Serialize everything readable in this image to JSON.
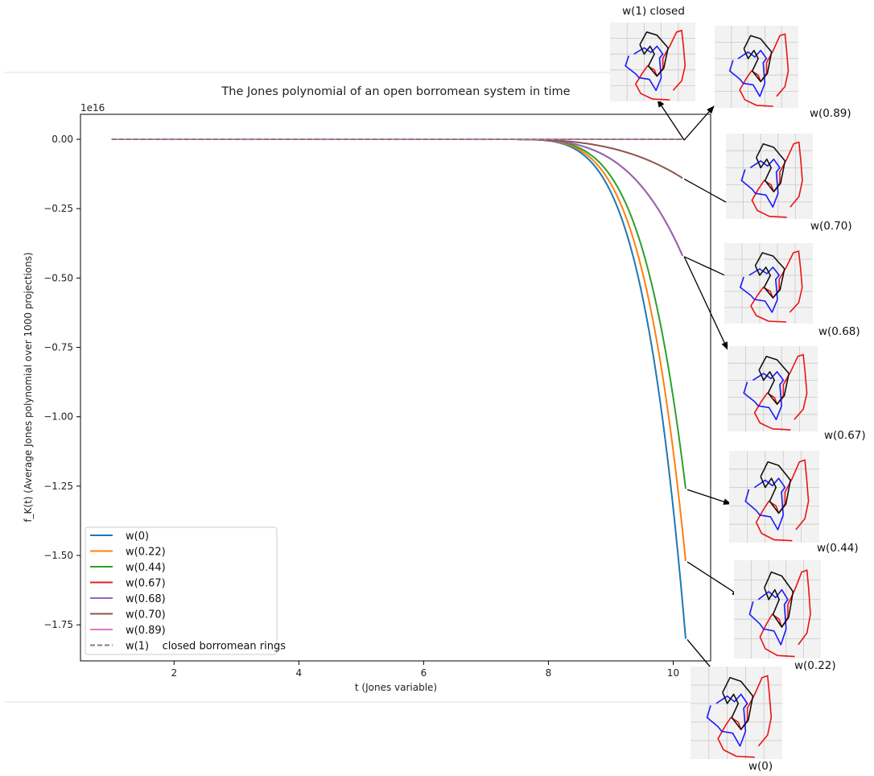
{
  "colors": {
    "w0": "#1f77b4",
    "w022": "#ff7f0e",
    "w044": "#2ca02c",
    "w067": "#d62728",
    "w068": "#9467bd",
    "w070": "#8c564b",
    "w089": "#e377c2",
    "w1": "#7f7f7f",
    "ring_black": "#111111",
    "ring_blue": "#1a1aff",
    "ring_red": "#ee1111"
  },
  "chart_data": {
    "type": "line",
    "title": "The Jones polynomial of an open borromean system in time",
    "xlabel": "t (Jones variable)",
    "ylabel": "f_K(t) (Average Jones polynomial over 1000 projections)",
    "y_offset_label": "1e16",
    "xlim": [
      0.5,
      10.6
    ],
    "ylim": [
      -1.88,
      0.09
    ],
    "x_ticks": [
      2,
      4,
      6,
      8,
      10
    ],
    "y_ticks": [
      0.0,
      -0.25,
      -0.5,
      -0.75,
      -1.0,
      -1.25,
      -1.5,
      -1.75
    ],
    "y_tick_labels": [
      "0.00",
      "−0.25",
      "−0.50",
      "−0.75",
      "−1.00",
      "−1.25",
      "−1.50",
      "−1.75"
    ],
    "grid": false,
    "legend_position": "lower-left",
    "x_range": [
      1.0,
      10.2
    ],
    "series": [
      {
        "name": "w(0)",
        "color": "#1f77b4",
        "dash": false,
        "end_value": -1.8,
        "x_end": 10.2,
        "onset": 7.2,
        "exponent": 4.4
      },
      {
        "name": "w(0.22)",
        "color": "#ff7f0e",
        "dash": false,
        "end_value": -1.52,
        "x_end": 10.2,
        "onset": 7.2,
        "exponent": 4.4
      },
      {
        "name": "w(0.44)",
        "color": "#2ca02c",
        "dash": false,
        "end_value": -1.26,
        "x_end": 10.2,
        "onset": 7.2,
        "exponent": 4.4
      },
      {
        "name": "w(0.67)",
        "color": "#d62728",
        "dash": false,
        "end_value": -0.42,
        "x_end": 10.15,
        "onset": 7.2,
        "exponent": 3.6
      },
      {
        "name": "w(0.68)",
        "color": "#9467bd",
        "dash": false,
        "end_value": -0.42,
        "x_end": 10.15,
        "onset": 7.2,
        "exponent": 3.6
      },
      {
        "name": "w(0.70)",
        "color": "#8c564b",
        "dash": false,
        "end_value": -0.14,
        "x_end": 10.15,
        "onset": 7.2,
        "exponent": 3.0
      },
      {
        "name": "w(0.89)",
        "color": "#e377c2",
        "dash": false,
        "end_value": 0.0,
        "x_end": 10.15,
        "onset": 7.2,
        "exponent": 3.0
      },
      {
        "name": "w(1)    closed borromean rings",
        "color": "#7f7f7f",
        "dash": true,
        "end_value": 0.0,
        "x_end": 10.15,
        "onset": 7.2,
        "exponent": 3.0
      }
    ],
    "annotations": [
      {
        "text": "w(1) closed",
        "series_index": 7,
        "thumb": "t1"
      },
      {
        "text": "w(0.89)",
        "series_index": 6,
        "thumb": "t2"
      },
      {
        "text": "w(0.70)",
        "series_index": 5,
        "thumb": "t3"
      },
      {
        "text": "w(0.68)",
        "series_index": 4,
        "thumb": "t4"
      },
      {
        "text": "w(0.67)",
        "series_index": 3,
        "thumb": "t5"
      },
      {
        "text": "w(0.44)",
        "series_index": 2,
        "thumb": "t6"
      },
      {
        "text": "w(0.22)",
        "series_index": 1,
        "thumb": "t7"
      },
      {
        "text": "w(0)",
        "series_index": 0,
        "thumb": "t8"
      }
    ]
  }
}
